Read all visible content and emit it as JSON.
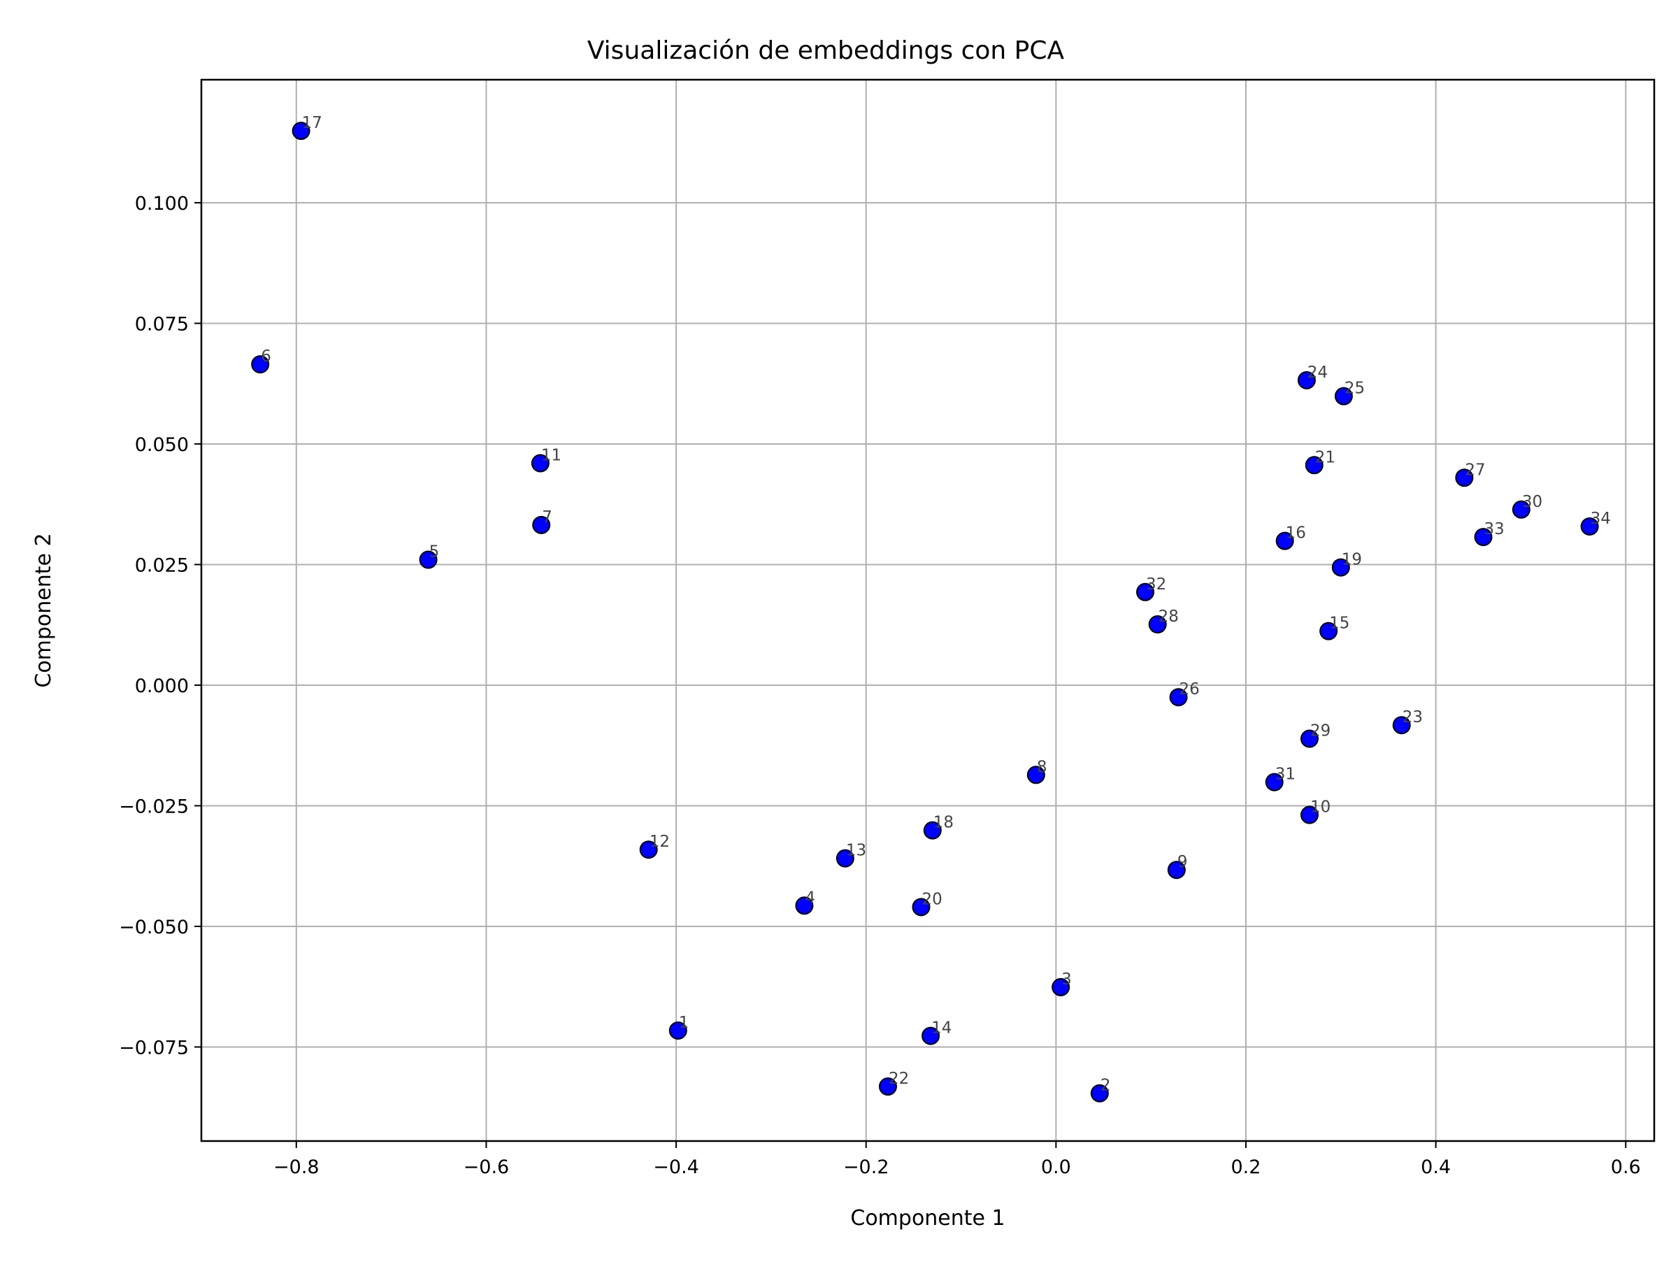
{
  "chart_data": {
    "type": "scatter",
    "title": "Visualización de embeddings con PCA",
    "xlabel": "Componente 1",
    "ylabel": "Componente 2",
    "xlim": [
      -0.9,
      0.63
    ],
    "ylim": [
      -0.0945,
      0.1255
    ],
    "grid": true,
    "x_ticks": [
      -0.8,
      -0.6,
      -0.4,
      -0.2,
      0.0,
      0.2,
      0.4,
      0.6
    ],
    "x_tick_labels": [
      "−0.8",
      "−0.6",
      "−0.4",
      "−0.2",
      "0.0",
      "0.2",
      "0.4",
      "0.6"
    ],
    "y_ticks": [
      0.1,
      0.075,
      0.05,
      0.025,
      0.0,
      -0.025,
      -0.05,
      -0.075
    ],
    "y_tick_labels": [
      "0.100",
      "0.075",
      "0.050",
      "0.025",
      "0.000",
      "−0.025",
      "−0.050",
      "−0.075"
    ],
    "marker_color": "#0000ff",
    "marker_edge_color": "#000000",
    "label_color": "#444444",
    "points": [
      {
        "label": "1",
        "x": -0.398,
        "y": -0.0716
      },
      {
        "label": "2",
        "x": 0.046,
        "y": -0.0846
      },
      {
        "label": "3",
        "x": 0.005,
        "y": -0.0626
      },
      {
        "label": "4",
        "x": -0.265,
        "y": -0.0457
      },
      {
        "label": "5",
        "x": -0.661,
        "y": 0.026
      },
      {
        "label": "6",
        "x": -0.838,
        "y": 0.0665
      },
      {
        "label": "7",
        "x": -0.542,
        "y": 0.0332
      },
      {
        "label": "8",
        "x": -0.021,
        "y": -0.0186
      },
      {
        "label": "9",
        "x": 0.127,
        "y": -0.0383
      },
      {
        "label": "10",
        "x": 0.267,
        "y": -0.0269
      },
      {
        "label": "11",
        "x": -0.543,
        "y": 0.046
      },
      {
        "label": "12",
        "x": -0.429,
        "y": -0.0341
      },
      {
        "label": "13",
        "x": -0.222,
        "y": -0.0359
      },
      {
        "label": "14",
        "x": -0.132,
        "y": -0.0727
      },
      {
        "label": "15",
        "x": 0.287,
        "y": 0.0112
      },
      {
        "label": "16",
        "x": 0.241,
        "y": 0.0299
      },
      {
        "label": "17",
        "x": -0.795,
        "y": 0.1149
      },
      {
        "label": "18",
        "x": -0.13,
        "y": -0.0301
      },
      {
        "label": "19",
        "x": 0.3,
        "y": 0.0244
      },
      {
        "label": "20",
        "x": -0.142,
        "y": -0.046
      },
      {
        "label": "21",
        "x": 0.272,
        "y": 0.0456
      },
      {
        "label": "22",
        "x": -0.177,
        "y": -0.0832
      },
      {
        "label": "23",
        "x": 0.364,
        "y": -0.0083
      },
      {
        "label": "24",
        "x": 0.264,
        "y": 0.0632
      },
      {
        "label": "25",
        "x": 0.303,
        "y": 0.0599
      },
      {
        "label": "26",
        "x": 0.129,
        "y": -0.0025
      },
      {
        "label": "27",
        "x": 0.43,
        "y": 0.043
      },
      {
        "label": "28",
        "x": 0.107,
        "y": 0.0126
      },
      {
        "label": "29",
        "x": 0.267,
        "y": -0.0111
      },
      {
        "label": "30",
        "x": 0.49,
        "y": 0.0364
      },
      {
        "label": "31",
        "x": 0.23,
        "y": -0.0201
      },
      {
        "label": "32",
        "x": 0.094,
        "y": 0.0193
      },
      {
        "label": "33",
        "x": 0.45,
        "y": 0.0307
      },
      {
        "label": "34",
        "x": 0.562,
        "y": 0.0329
      }
    ]
  }
}
